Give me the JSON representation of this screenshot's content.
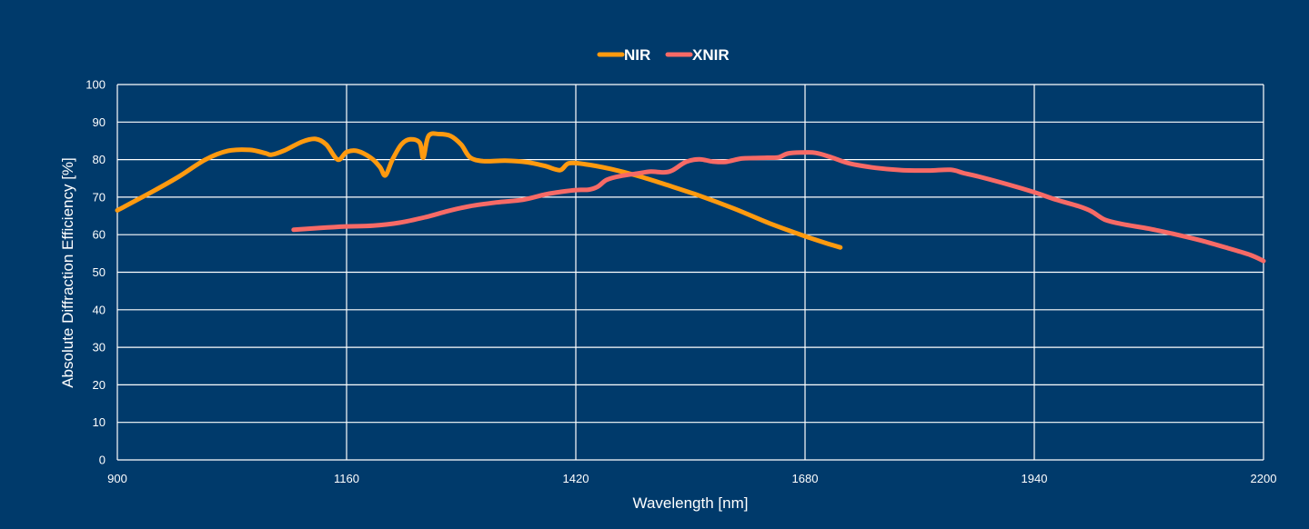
{
  "chart_data": {
    "type": "line",
    "title": "",
    "xlabel": "Wavelength [nm]",
    "ylabel": "Absolute Diffraction Efficiency [%]",
    "xlim": [
      900,
      2200
    ],
    "ylim": [
      0,
      100
    ],
    "x_ticks": [
      900,
      1160,
      1420,
      1680,
      1940,
      2200
    ],
    "y_ticks": [
      0,
      10,
      20,
      30,
      40,
      50,
      60,
      70,
      80,
      90,
      100
    ],
    "grid": true,
    "legend_position": "top-center",
    "series": [
      {
        "name": "NIR",
        "color": "#ff9a0f",
        "points": [
          [
            900,
            66.5
          ],
          [
            940,
            71.5
          ],
          [
            970,
            75.5
          ],
          [
            1000,
            80
          ],
          [
            1025,
            82.3
          ],
          [
            1050,
            82.6
          ],
          [
            1068,
            81.7
          ],
          [
            1075,
            81.3
          ],
          [
            1090,
            82.5
          ],
          [
            1110,
            84.8
          ],
          [
            1125,
            85.5
          ],
          [
            1137,
            84
          ],
          [
            1150,
            80
          ],
          [
            1160,
            82
          ],
          [
            1172,
            82.3
          ],
          [
            1188,
            80.4
          ],
          [
            1198,
            78
          ],
          [
            1204,
            75.8
          ],
          [
            1212,
            80
          ],
          [
            1222,
            84
          ],
          [
            1232,
            85.4
          ],
          [
            1243,
            84.5
          ],
          [
            1247,
            80.5
          ],
          [
            1253,
            86.3
          ],
          [
            1265,
            86.8
          ],
          [
            1278,
            86.3
          ],
          [
            1290,
            84
          ],
          [
            1300,
            80.6
          ],
          [
            1315,
            79.6
          ],
          [
            1340,
            79.7
          ],
          [
            1365,
            79.3
          ],
          [
            1385,
            78.3
          ],
          [
            1402,
            77.2
          ],
          [
            1412,
            79
          ],
          [
            1430,
            78.8
          ],
          [
            1460,
            77.5
          ],
          [
            1490,
            75.7
          ],
          [
            1520,
            73.5
          ],
          [
            1560,
            70.4
          ],
          [
            1600,
            66.9
          ],
          [
            1640,
            63
          ],
          [
            1680,
            59.6
          ],
          [
            1703,
            57.8
          ],
          [
            1720,
            56.6
          ]
        ]
      },
      {
        "name": "XNIR",
        "color": "#f76a66",
        "points": [
          [
            1100,
            61.3
          ],
          [
            1130,
            61.8
          ],
          [
            1160,
            62.2
          ],
          [
            1190,
            62.4
          ],
          [
            1220,
            63.2
          ],
          [
            1250,
            64.7
          ],
          [
            1275,
            66.3
          ],
          [
            1300,
            67.6
          ],
          [
            1330,
            68.6
          ],
          [
            1360,
            69.3
          ],
          [
            1385,
            70.7
          ],
          [
            1400,
            71.3
          ],
          [
            1420,
            71.9
          ],
          [
            1435,
            72
          ],
          [
            1445,
            72.8
          ],
          [
            1455,
            74.6
          ],
          [
            1470,
            75.6
          ],
          [
            1490,
            76.3
          ],
          [
            1505,
            76.8
          ],
          [
            1520,
            76.6
          ],
          [
            1530,
            77.2
          ],
          [
            1545,
            79.4
          ],
          [
            1560,
            80.1
          ],
          [
            1575,
            79.5
          ],
          [
            1590,
            79.4
          ],
          [
            1608,
            80.3
          ],
          [
            1622,
            80.4
          ],
          [
            1637,
            80.5
          ],
          [
            1650,
            80.6
          ],
          [
            1660,
            81.6
          ],
          [
            1675,
            81.9
          ],
          [
            1692,
            81.8
          ],
          [
            1710,
            80.6
          ],
          [
            1730,
            79
          ],
          [
            1760,
            77.8
          ],
          [
            1790,
            77.2
          ],
          [
            1820,
            77.1
          ],
          [
            1845,
            77.3
          ],
          [
            1860,
            76.4
          ],
          [
            1880,
            75.3
          ],
          [
            1910,
            73.4
          ],
          [
            1940,
            71.3
          ],
          [
            1965,
            69.3
          ],
          [
            1990,
            67.6
          ],
          [
            2005,
            66.2
          ],
          [
            2020,
            64
          ],
          [
            2040,
            62.8
          ],
          [
            2070,
            61.6
          ],
          [
            2100,
            60.1
          ],
          [
            2130,
            58.4
          ],
          [
            2160,
            56.4
          ],
          [
            2185,
            54.6
          ],
          [
            2200,
            53
          ]
        ]
      }
    ]
  }
}
